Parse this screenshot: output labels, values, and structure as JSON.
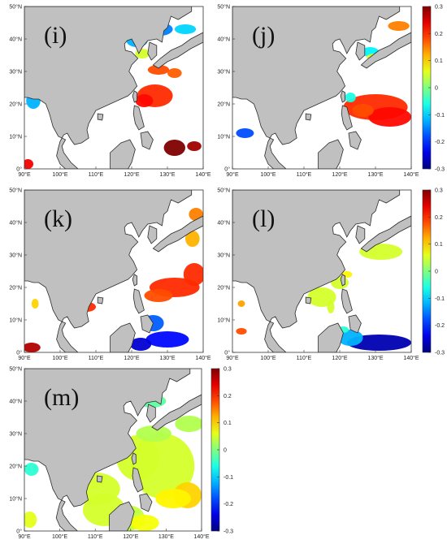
{
  "figure": {
    "panels": [
      {
        "id": "i",
        "label": "(i)"
      },
      {
        "id": "j",
        "label": "(j)"
      },
      {
        "id": "k",
        "label": "(k)"
      },
      {
        "id": "l",
        "label": "(l)"
      },
      {
        "id": "m",
        "label": "(m)"
      }
    ],
    "lat_ticks": [
      "0°",
      "10°N",
      "20°N",
      "30°N",
      "40°N",
      "50°N"
    ],
    "lon_ticks": [
      "90°E",
      "100°E",
      "110°E",
      "120°E",
      "130°E",
      "140°E"
    ],
    "colorbar": {
      "ticks": [
        "0.3",
        "0.2",
        "0.1",
        "0",
        "-0.1",
        "-0.2",
        "-0.3"
      ],
      "range": [
        -0.3,
        0.3
      ],
      "colormap": "jet"
    },
    "colors": {
      "land": "#c0c0c0",
      "coast": "#2a2a2a",
      "ocean": "#ffffff"
    }
  }
}
